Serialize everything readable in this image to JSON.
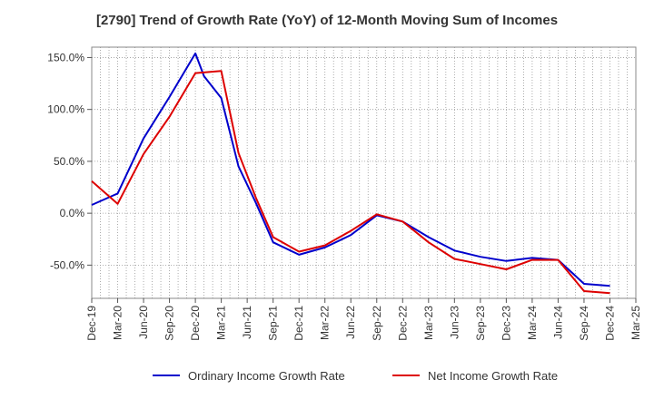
{
  "chart_data": {
    "type": "line",
    "title": "[2790]  Trend of Growth Rate (YoY) of 12-Month Moving Sum of Incomes",
    "xlabel": "",
    "ylabel": "",
    "ylim": [
      -82,
      160
    ],
    "y_ticks": [
      150,
      100,
      50,
      0,
      -50
    ],
    "y_tick_labels": [
      "150.0%",
      "100.0%",
      "50.0%",
      "0.0%",
      "-50.0%"
    ],
    "x_tick_labels": [
      "Dec-19",
      "Mar-20",
      "Jun-20",
      "Sep-20",
      "Dec-20",
      "Mar-21",
      "Jun-21",
      "Sep-21",
      "Dec-21",
      "Mar-22",
      "Jun-22",
      "Sep-22",
      "Dec-22",
      "Mar-23",
      "Jun-23",
      "Sep-23",
      "Dec-23",
      "Mar-24",
      "Jun-24",
      "Sep-24",
      "Dec-24",
      "Mar-25"
    ],
    "grid": true,
    "legend_position": "bottom",
    "series": [
      {
        "name": "Ordinary Income Growth Rate",
        "color": "#0000cc",
        "points": [
          [
            "Dec-19",
            8
          ],
          [
            "Mar-20",
            19
          ],
          [
            "Jun-20",
            72
          ],
          [
            "Sep-20",
            112
          ],
          [
            "Dec-20",
            154
          ],
          [
            "Jan-21",
            132
          ],
          [
            "Mar-21",
            111
          ],
          [
            "May-21",
            45
          ],
          [
            "Jul-21",
            10
          ],
          [
            "Sep-21",
            -28
          ],
          [
            "Dec-21",
            -40
          ],
          [
            "Mar-22",
            -33
          ],
          [
            "Jun-22",
            -21
          ],
          [
            "Sep-22",
            -2
          ],
          [
            "Dec-22",
            -8
          ],
          [
            "Mar-23",
            -23
          ],
          [
            "Jun-23",
            -36
          ],
          [
            "Sep-23",
            -42
          ],
          [
            "Dec-23",
            -46
          ],
          [
            "Mar-24",
            -43
          ],
          [
            "Jun-24",
            -45
          ],
          [
            "Sep-24",
            -68
          ],
          [
            "Dec-24",
            -70
          ]
        ]
      },
      {
        "name": "Net Income Growth Rate",
        "color": "#dd0000",
        "points": [
          [
            "Dec-19",
            31
          ],
          [
            "Mar-20",
            9
          ],
          [
            "Jun-20",
            57
          ],
          [
            "Sep-20",
            93
          ],
          [
            "Dec-20",
            135
          ],
          [
            "Mar-21",
            137
          ],
          [
            "May-21",
            58
          ],
          [
            "Jul-21",
            15
          ],
          [
            "Sep-21",
            -23
          ],
          [
            "Dec-21",
            -37
          ],
          [
            "Mar-22",
            -31
          ],
          [
            "Jun-22",
            -17
          ],
          [
            "Sep-22",
            -1
          ],
          [
            "Dec-22",
            -8
          ],
          [
            "Mar-23",
            -28
          ],
          [
            "Jun-23",
            -44
          ],
          [
            "Sep-23",
            -49
          ],
          [
            "Dec-23",
            -54
          ],
          [
            "Mar-24",
            -45
          ],
          [
            "Jun-24",
            -45
          ],
          [
            "Sep-24",
            -75
          ],
          [
            "Dec-24",
            -77
          ]
        ]
      }
    ]
  }
}
